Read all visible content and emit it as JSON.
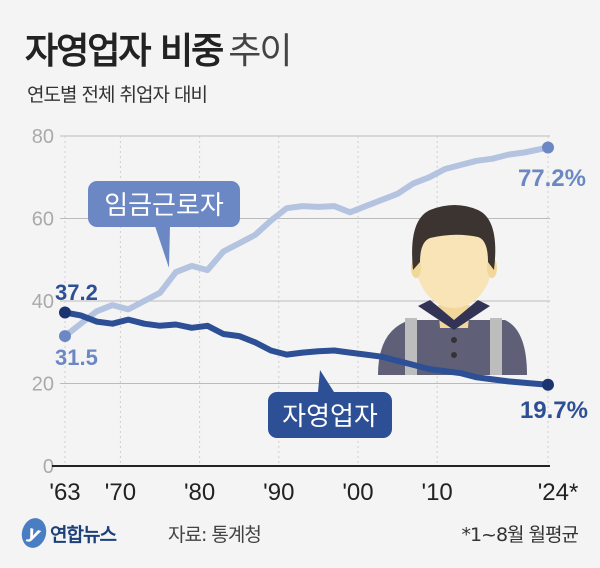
{
  "header": {
    "title_bold": "자영업자 비중",
    "title_light": "추이",
    "subtitle": "연도별 전체 취업자 대비"
  },
  "footer": {
    "logo_mark": "y",
    "logo_text": "연합뉴스",
    "source": "자료: 통계청",
    "note": "*1~8월 월평균"
  },
  "colors": {
    "wage_workers": "#b4c3e0",
    "wage_workers_marker": "#6c88c4",
    "self_employed": "#2d4f95",
    "self_employed_marker": "#1b3470",
    "axis": "#222222",
    "grid": "#bbbbbb"
  },
  "chart_data": {
    "type": "line",
    "title": "자영업자 비중 추이",
    "subtitle": "연도별 전체 취업자 대비",
    "xlabel": "",
    "ylabel": "",
    "ylim": [
      0,
      80
    ],
    "yticks": [
      0,
      20,
      40,
      60,
      80
    ],
    "xtick_labels": [
      "'63",
      "'70",
      "'80",
      "'90",
      "'00",
      "'10",
      "'24*"
    ],
    "xtick_years": [
      1963,
      1970,
      1980,
      1990,
      2000,
      2010,
      2024
    ],
    "grid": true,
    "legend_position": "inline callouts",
    "x": [
      1963,
      1965,
      1967,
      1969,
      1971,
      1973,
      1975,
      1977,
      1979,
      1981,
      1983,
      1985,
      1987,
      1989,
      1991,
      1993,
      1995,
      1997,
      1999,
      2001,
      2003,
      2005,
      2007,
      2009,
      2011,
      2013,
      2015,
      2017,
      2019,
      2021,
      2024
    ],
    "series": [
      {
        "name": "임금근로자",
        "values": [
          31.5,
          34.5,
          37.5,
          39.0,
          38.0,
          40.0,
          42.0,
          47.0,
          48.5,
          47.5,
          52.0,
          54.0,
          56.0,
          59.5,
          62.5,
          63.0,
          62.8,
          63.0,
          61.5,
          63.0,
          64.5,
          66.0,
          68.5,
          70.0,
          72.0,
          73.0,
          74.0,
          74.5,
          75.5,
          76.0,
          77.2
        ],
        "end_label": "77.2%",
        "start_label": "31.5"
      },
      {
        "name": "자영업자",
        "values": [
          37.2,
          36.5,
          35.0,
          34.5,
          35.5,
          34.5,
          34.0,
          34.3,
          33.5,
          34.0,
          32.0,
          31.5,
          30.0,
          28.0,
          27.0,
          27.5,
          27.8,
          28.0,
          27.5,
          27.0,
          26.5,
          25.5,
          24.5,
          23.5,
          23.0,
          22.5,
          21.5,
          21.0,
          20.5,
          20.2,
          19.7
        ],
        "end_label": "19.7%",
        "start_label": "37.2"
      }
    ],
    "annotations": [
      "*1~8월 월평균",
      "자료: 통계청"
    ]
  }
}
